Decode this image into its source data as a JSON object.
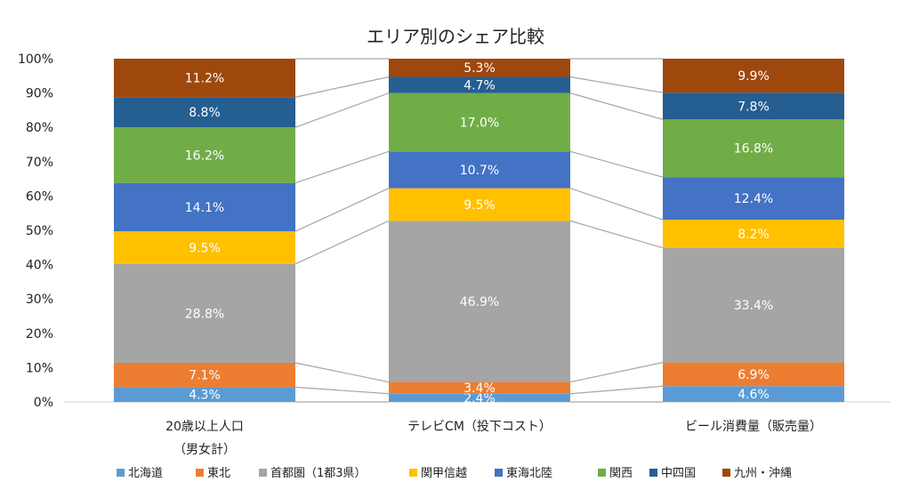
{
  "chart_data": {
    "type": "bar",
    "stacked": true,
    "percent": true,
    "title": "エリア別のシェア比較",
    "categories": [
      [
        "20歳以上人口",
        "（男女計）"
      ],
      [
        "テレビCM（投下コスト）"
      ],
      [
        "ビール消費量（販売量）"
      ]
    ],
    "yticks": [
      "0%",
      "10%",
      "20%",
      "30%",
      "40%",
      "50%",
      "60%",
      "70%",
      "80%",
      "90%",
      "100%"
    ],
    "ylim": [
      0,
      100
    ],
    "grid": false,
    "legend_position": "bottom",
    "series": [
      {
        "name": "北海道",
        "color": "#5b9bd5",
        "values": [
          4.3,
          2.4,
          4.6
        ],
        "labels": [
          "4.3%",
          "2.4%",
          "4.6%"
        ]
      },
      {
        "name": "東北",
        "color": "#ed7d31",
        "values": [
          7.1,
          3.4,
          6.9
        ],
        "labels": [
          "7.1%",
          "3.4%",
          "6.9%"
        ]
      },
      {
        "name": "首都圏（1都3県）",
        "color": "#a5a5a5",
        "values": [
          28.8,
          46.9,
          33.4
        ],
        "labels": [
          "28.8%",
          "46.9%",
          "33.4%"
        ]
      },
      {
        "name": "関甲信越",
        "color": "#ffc000",
        "values": [
          9.5,
          9.5,
          8.2
        ],
        "labels": [
          "9.5%",
          "9.5%",
          "8.2%"
        ]
      },
      {
        "name": "東海北陸",
        "color": "#4472c4",
        "values": [
          14.1,
          10.7,
          12.4
        ],
        "labels": [
          "14.1%",
          "10.7%",
          "12.4%"
        ]
      },
      {
        "name": "関西",
        "color": "#70ad47",
        "values": [
          16.2,
          17.0,
          16.8
        ],
        "labels": [
          "16.2%",
          "17.0%",
          "16.8%"
        ]
      },
      {
        "name": "中四国",
        "color": "#255e91",
        "values": [
          8.8,
          4.7,
          7.8
        ],
        "labels": [
          "8.8%",
          "4.7%",
          "7.8%"
        ]
      },
      {
        "name": "九州・沖縄",
        "color": "#9e480e",
        "values": [
          11.2,
          5.3,
          9.9
        ],
        "labels": [
          "11.2%",
          "5.3%",
          "9.9%"
        ]
      }
    ]
  }
}
